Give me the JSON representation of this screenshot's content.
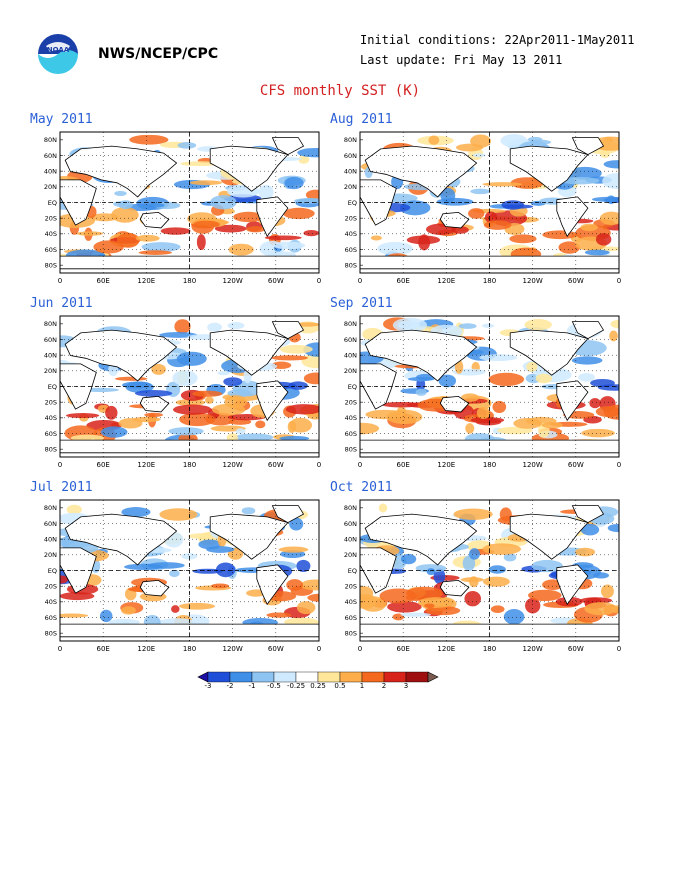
{
  "header": {
    "org": "NWS/NCEP/CPC",
    "init_conditions": "Initial conditions: 22Apr2011-1May2011",
    "last_update": "Last update: Fri May 13 2011",
    "title": "CFS monthly SST (K)"
  },
  "logo_icon": "noaa-logo-icon",
  "panels": [
    {
      "label": "May 2011"
    },
    {
      "label": "Aug 2011"
    },
    {
      "label": "Jun 2011"
    },
    {
      "label": "Sep 2011"
    },
    {
      "label": "Jul 2011"
    },
    {
      "label": "Oct 2011"
    }
  ],
  "axes": {
    "lat_labels": [
      "80N",
      "60N",
      "40N",
      "20N",
      "EQ",
      "20S",
      "40S",
      "60S",
      "80S"
    ],
    "lon_labels": [
      "0",
      "60E",
      "120E",
      "180",
      "120W",
      "60W",
      "0"
    ]
  },
  "colorbar": {
    "ticks": [
      "-3",
      "-2",
      "-1",
      "-0.5",
      "-0.25",
      "0.25",
      "0.5",
      "1",
      "2",
      "3"
    ],
    "colors": [
      "#1c0fa6",
      "#1f4fd8",
      "#3f8ee8",
      "#8ec4f2",
      "#cfeaff",
      "#ffffff",
      "#ffe699",
      "#fdae4a",
      "#f4691d",
      "#d8231a",
      "#9e1010",
      "#7a5a50"
    ]
  }
}
